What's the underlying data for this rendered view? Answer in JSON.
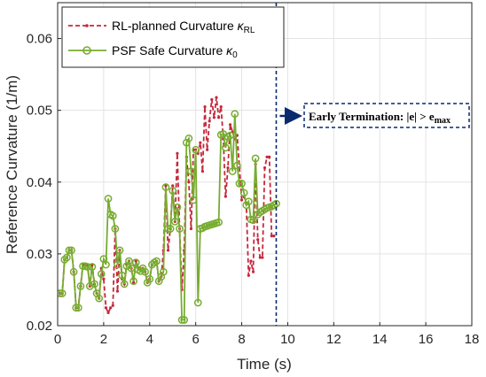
{
  "chart_data": {
    "type": "line",
    "xlabel": "Time (s)",
    "ylabel": "Reference Curvature (1/m)",
    "xlim": [
      0,
      18
    ],
    "ylim": [
      0.02,
      0.065
    ],
    "x_ticks": [
      "0",
      "2",
      "4",
      "6",
      "8",
      "10",
      "12",
      "14",
      "16",
      "18"
    ],
    "y_ticks": [
      "0.02",
      "0.03",
      "0.04",
      "0.05",
      "0.06"
    ],
    "grid": true,
    "legend_position": "top-left",
    "legend": {
      "rl_label": "RL-planned Curvature",
      "rl_symbol": "κ",
      "rl_sub": "RL",
      "psf_label": "PSF Safe Curvature",
      "psf_symbol": "κ",
      "psf_sub": "0"
    },
    "termination_time": 9.5,
    "annotation": {
      "text": "Early Termination: |e| > e",
      "sub": "max"
    },
    "colors": {
      "rl": "#c5283d",
      "psf": "#77ac30",
      "termination": "#0a2a6e"
    },
    "series": [
      {
        "name": "RL-planned Curvature κRL",
        "style": "dashed-dot",
        "x": [
          0.1,
          0.2,
          0.3,
          0.4,
          0.5,
          0.6,
          0.7,
          0.8,
          0.9,
          1.0,
          1.1,
          1.2,
          1.3,
          1.4,
          1.5,
          1.6,
          1.7,
          1.8,
          1.9,
          2.0,
          2.1,
          2.2,
          2.3,
          2.4,
          2.5,
          2.6,
          2.7,
          2.8,
          2.9,
          3.0,
          3.1,
          3.2,
          3.3,
          3.4,
          3.5,
          3.6,
          3.7,
          3.8,
          3.9,
          4.0,
          4.1,
          4.2,
          4.3,
          4.4,
          4.5,
          4.6,
          4.7,
          4.8,
          4.9,
          5.0,
          5.1,
          5.2,
          5.3,
          5.4,
          5.5,
          5.6,
          5.7,
          5.8,
          5.9,
          6.0,
          6.1,
          6.2,
          6.3,
          6.4,
          6.5,
          6.6,
          6.7,
          6.8,
          6.9,
          7.0,
          7.1,
          7.2,
          7.3,
          7.4,
          7.5,
          7.6,
          7.7,
          7.8,
          7.9,
          8.0,
          8.1,
          8.2,
          8.3,
          8.4,
          8.5,
          8.6,
          8.7,
          8.8,
          8.9,
          9.0,
          9.1,
          9.2,
          9.3,
          9.4
        ],
        "y": [
          0.0245,
          0.0245,
          0.0292,
          0.0295,
          0.0305,
          0.0305,
          0.0275,
          0.0225,
          0.0225,
          0.0255,
          0.0285,
          0.0285,
          0.0285,
          0.0255,
          0.0285,
          0.0258,
          0.0245,
          0.0238,
          0.028,
          0.0265,
          0.0225,
          0.0218,
          0.0225,
          0.0228,
          0.0335,
          0.0248,
          0.0305,
          0.0265,
          0.0258,
          0.0285,
          0.029,
          0.028,
          0.026,
          0.029,
          0.028,
          0.0278,
          0.028,
          0.0275,
          0.026,
          0.0265,
          0.0285,
          0.0288,
          0.029,
          0.0262,
          0.0268,
          0.0305,
          0.0395,
          0.0305,
          0.0335,
          0.0395,
          0.0345,
          0.044,
          0.0335,
          0.025,
          0.0305,
          0.0435,
          0.04,
          0.0335,
          0.0445,
          0.0445,
          0.044,
          0.0455,
          0.0415,
          0.0505,
          0.0445,
          0.0485,
          0.0515,
          0.049,
          0.0518,
          0.049,
          0.0505,
          0.046,
          0.038,
          0.042,
          0.048,
          0.047,
          0.046,
          0.0465,
          0.042,
          0.0375,
          0.038,
          0.037,
          0.027,
          0.029,
          0.0275,
          0.0425,
          0.032,
          0.0295,
          0.0295,
          0.042,
          0.0435,
          0.0435,
          0.0325,
          0.0325
        ]
      },
      {
        "name": "PSF Safe Curvature κ0",
        "style": "solid-circles",
        "x": [
          0.1,
          0.2,
          0.3,
          0.4,
          0.5,
          0.6,
          0.7,
          0.8,
          0.9,
          1.0,
          1.1,
          1.2,
          1.3,
          1.4,
          1.5,
          1.6,
          1.7,
          1.8,
          1.9,
          2.0,
          2.1,
          2.2,
          2.3,
          2.4,
          2.5,
          2.6,
          2.7,
          2.8,
          2.9,
          3.0,
          3.1,
          3.2,
          3.3,
          3.4,
          3.5,
          3.6,
          3.7,
          3.8,
          3.9,
          4.0,
          4.1,
          4.2,
          4.3,
          4.4,
          4.5,
          4.6,
          4.7,
          4.8,
          4.9,
          5.0,
          5.1,
          5.2,
          5.3,
          5.4,
          5.5,
          5.6,
          5.7,
          5.8,
          5.9,
          6.0,
          6.1,
          6.2,
          6.3,
          6.4,
          6.5,
          6.6,
          6.7,
          6.8,
          6.9,
          7.0,
          7.1,
          7.2,
          7.3,
          7.4,
          7.5,
          7.6,
          7.7,
          7.8,
          7.9,
          8.0,
          8.1,
          8.2,
          8.3,
          8.4,
          8.5,
          8.6,
          8.7,
          8.8,
          8.9,
          9.0,
          9.1,
          9.2,
          9.3,
          9.4,
          9.5
        ],
        "y": [
          0.0245,
          0.0245,
          0.0292,
          0.0295,
          0.0305,
          0.0305,
          0.0275,
          0.0225,
          0.0225,
          0.0255,
          0.0283,
          0.0283,
          0.0282,
          0.0255,
          0.0282,
          0.0258,
          0.0245,
          0.0238,
          0.0272,
          0.0293,
          0.0285,
          0.0377,
          0.0355,
          0.0353,
          0.0335,
          0.0285,
          0.0305,
          0.027,
          0.0258,
          0.0283,
          0.029,
          0.028,
          0.0262,
          0.0288,
          0.0278,
          0.0276,
          0.028,
          0.0275,
          0.026,
          0.0265,
          0.0285,
          0.0288,
          0.029,
          0.0262,
          0.0268,
          0.0275,
          0.0393,
          0.0335,
          0.0335,
          0.0388,
          0.0345,
          0.0365,
          0.0335,
          0.0208,
          0.0208,
          0.0455,
          0.0461,
          0.0415,
          0.0375,
          0.0445,
          0.0232,
          0.0335,
          0.0336,
          0.0338,
          0.0339,
          0.034,
          0.0341,
          0.0342,
          0.0343,
          0.0344,
          0.0466,
          0.0467,
          0.0448,
          0.0463,
          0.0465,
          0.0415,
          0.0495,
          0.0423,
          0.0398,
          0.0398,
          0.0385,
          0.0368,
          0.0373,
          0.0348,
          0.0347,
          0.0433,
          0.0355,
          0.0358,
          0.036,
          0.0362,
          0.0364,
          0.0365,
          0.0366,
          0.0368,
          0.037
        ]
      }
    ]
  }
}
